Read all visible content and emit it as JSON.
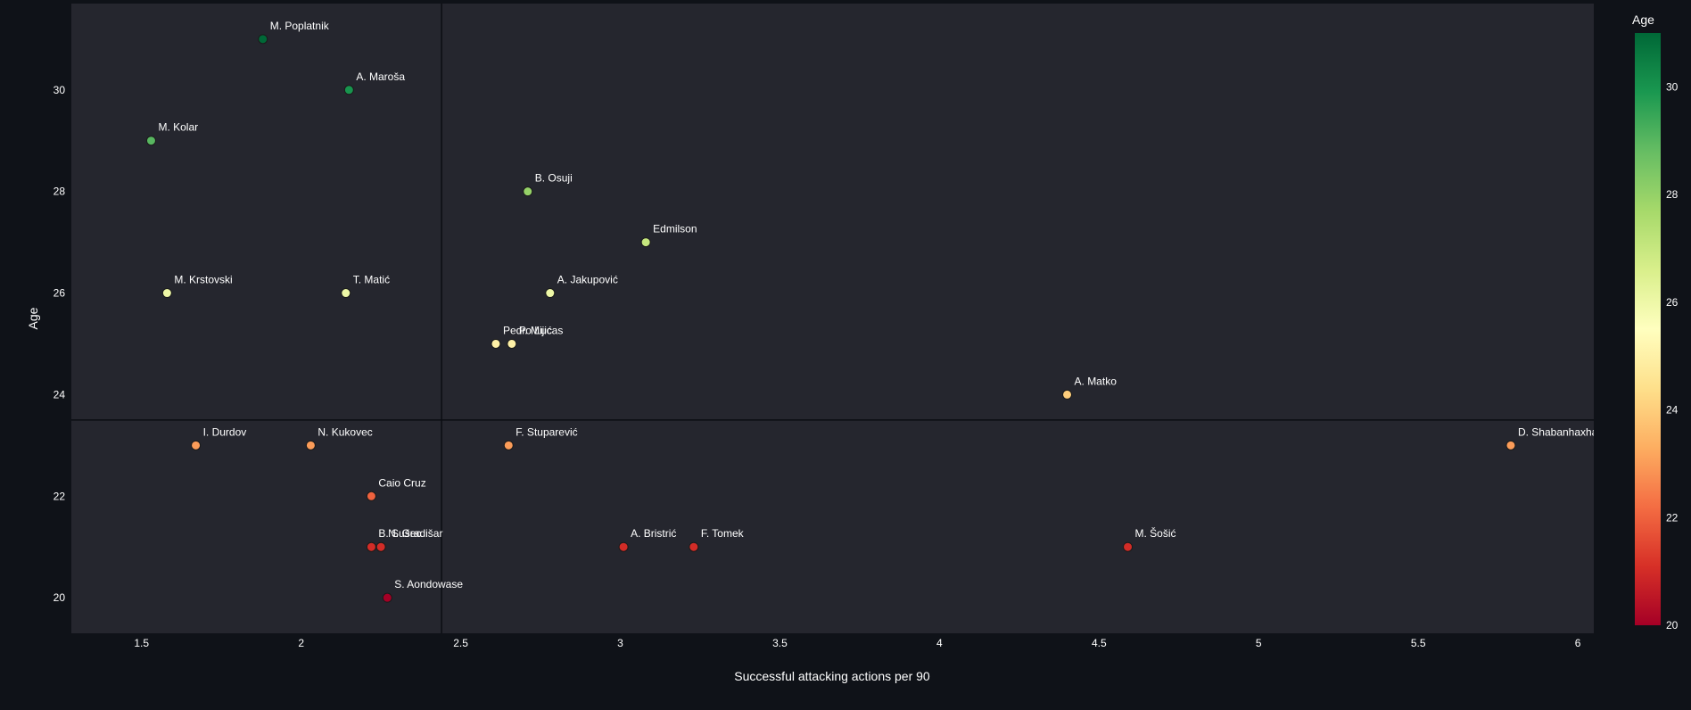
{
  "chart_data": {
    "type": "scatter",
    "title": "",
    "xlabel": "Successful attacking actions per 90",
    "ylabel": "Age",
    "xlim": [
      1.28,
      6.05
    ],
    "ylim": [
      19.3,
      31.7
    ],
    "xticks": [
      1.5,
      2,
      2.5,
      3,
      3.5,
      4,
      4.5,
      5,
      5.5,
      6
    ],
    "xtick_labels": [
      "1.5",
      "2",
      "2.5",
      "3",
      "3.5",
      "4",
      "4.5",
      "5",
      "5.5",
      "6"
    ],
    "yticks": [
      20,
      22,
      24,
      26,
      28,
      30
    ],
    "ytick_labels": [
      "20",
      "22",
      "24",
      "26",
      "28",
      "30"
    ],
    "reference_lines": {
      "x": 2.44,
      "y": 23.5
    },
    "grid": false,
    "colorbar": {
      "title": "Age",
      "range": [
        20,
        31
      ],
      "ticks": [
        20,
        22,
        24,
        26,
        28,
        30
      ],
      "tick_labels": [
        "20",
        "22",
        "24",
        "26",
        "28",
        "30"
      ],
      "colorscale": [
        "#a50026",
        "#d73027",
        "#f46d43",
        "#fdae61",
        "#fee08b",
        "#ffffbf",
        "#d9ef8b",
        "#a6d96a",
        "#66bd63",
        "#1a9850",
        "#006837"
      ]
    },
    "points": [
      {
        "name": "M. Poplatnik",
        "x": 1.88,
        "y": 31
      },
      {
        "name": "A. Maroša",
        "x": 2.15,
        "y": 30
      },
      {
        "name": "M. Kolar",
        "x": 1.53,
        "y": 29
      },
      {
        "name": "B. Osuji",
        "x": 2.71,
        "y": 28
      },
      {
        "name": "Edmilson",
        "x": 3.08,
        "y": 27
      },
      {
        "name": "M. Krstovski",
        "x": 1.58,
        "y": 26
      },
      {
        "name": "T. Matić",
        "x": 2.14,
        "y": 26
      },
      {
        "name": "A. Jakupović",
        "x": 2.78,
        "y": 26
      },
      {
        "name": "Pedro Lucas",
        "x": 2.61,
        "y": 25
      },
      {
        "name": "P. Mijić",
        "x": 2.66,
        "y": 25
      },
      {
        "name": "A. Matko",
        "x": 4.4,
        "y": 24
      },
      {
        "name": "I. Durdov",
        "x": 1.67,
        "y": 23
      },
      {
        "name": "N. Kukovec",
        "x": 2.03,
        "y": 23
      },
      {
        "name": "F. Stuparević",
        "x": 2.65,
        "y": 23
      },
      {
        "name": "D. Shabanhaxhaj",
        "x": 5.79,
        "y": 23
      },
      {
        "name": "Caio Cruz",
        "x": 2.22,
        "y": 22
      },
      {
        "name": "B. Sušec",
        "x": 2.22,
        "y": 21
      },
      {
        "name": "N. Gradišar",
        "x": 2.25,
        "y": 21
      },
      {
        "name": "A. Bristrić",
        "x": 3.01,
        "y": 21
      },
      {
        "name": "F. Tomek",
        "x": 3.23,
        "y": 21
      },
      {
        "name": "M. Šošić",
        "x": 4.59,
        "y": 21
      },
      {
        "name": "S. Aondowase",
        "x": 2.27,
        "y": 20
      }
    ]
  }
}
